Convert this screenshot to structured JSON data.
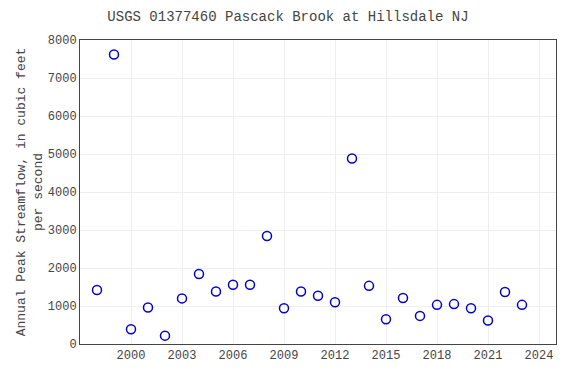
{
  "chart_data": {
    "type": "scatter",
    "title": "USGS 01377460 Pascack Brook at Hillsdale NJ",
    "ylabel": "Annual Peak Streamflow, in cubic feet\nper second",
    "x": [
      1998,
      1999,
      2000,
      2001,
      2002,
      2003,
      2004,
      2005,
      2006,
      2007,
      2008,
      2009,
      2010,
      2011,
      2012,
      2013,
      2014,
      2015,
      2016,
      2017,
      2018,
      2019,
      2020,
      2021,
      2022,
      2023
    ],
    "values": [
      1420,
      7620,
      390,
      960,
      220,
      1200,
      1840,
      1380,
      1560,
      1560,
      2840,
      940,
      1380,
      1270,
      1100,
      4880,
      1530,
      650,
      1210,
      740,
      1030,
      1050,
      940,
      620,
      1370,
      1030
    ],
    "color": "#0000cc",
    "marker": "circle-open",
    "xlim": [
      1997,
      2025
    ],
    "ylim": [
      0,
      8000
    ],
    "xticks": [
      2000,
      2003,
      2006,
      2009,
      2012,
      2015,
      2018,
      2021,
      2024
    ],
    "yticks": [
      0,
      1000,
      2000,
      3000,
      4000,
      5000,
      6000,
      7000,
      8000
    ],
    "grid": true
  }
}
